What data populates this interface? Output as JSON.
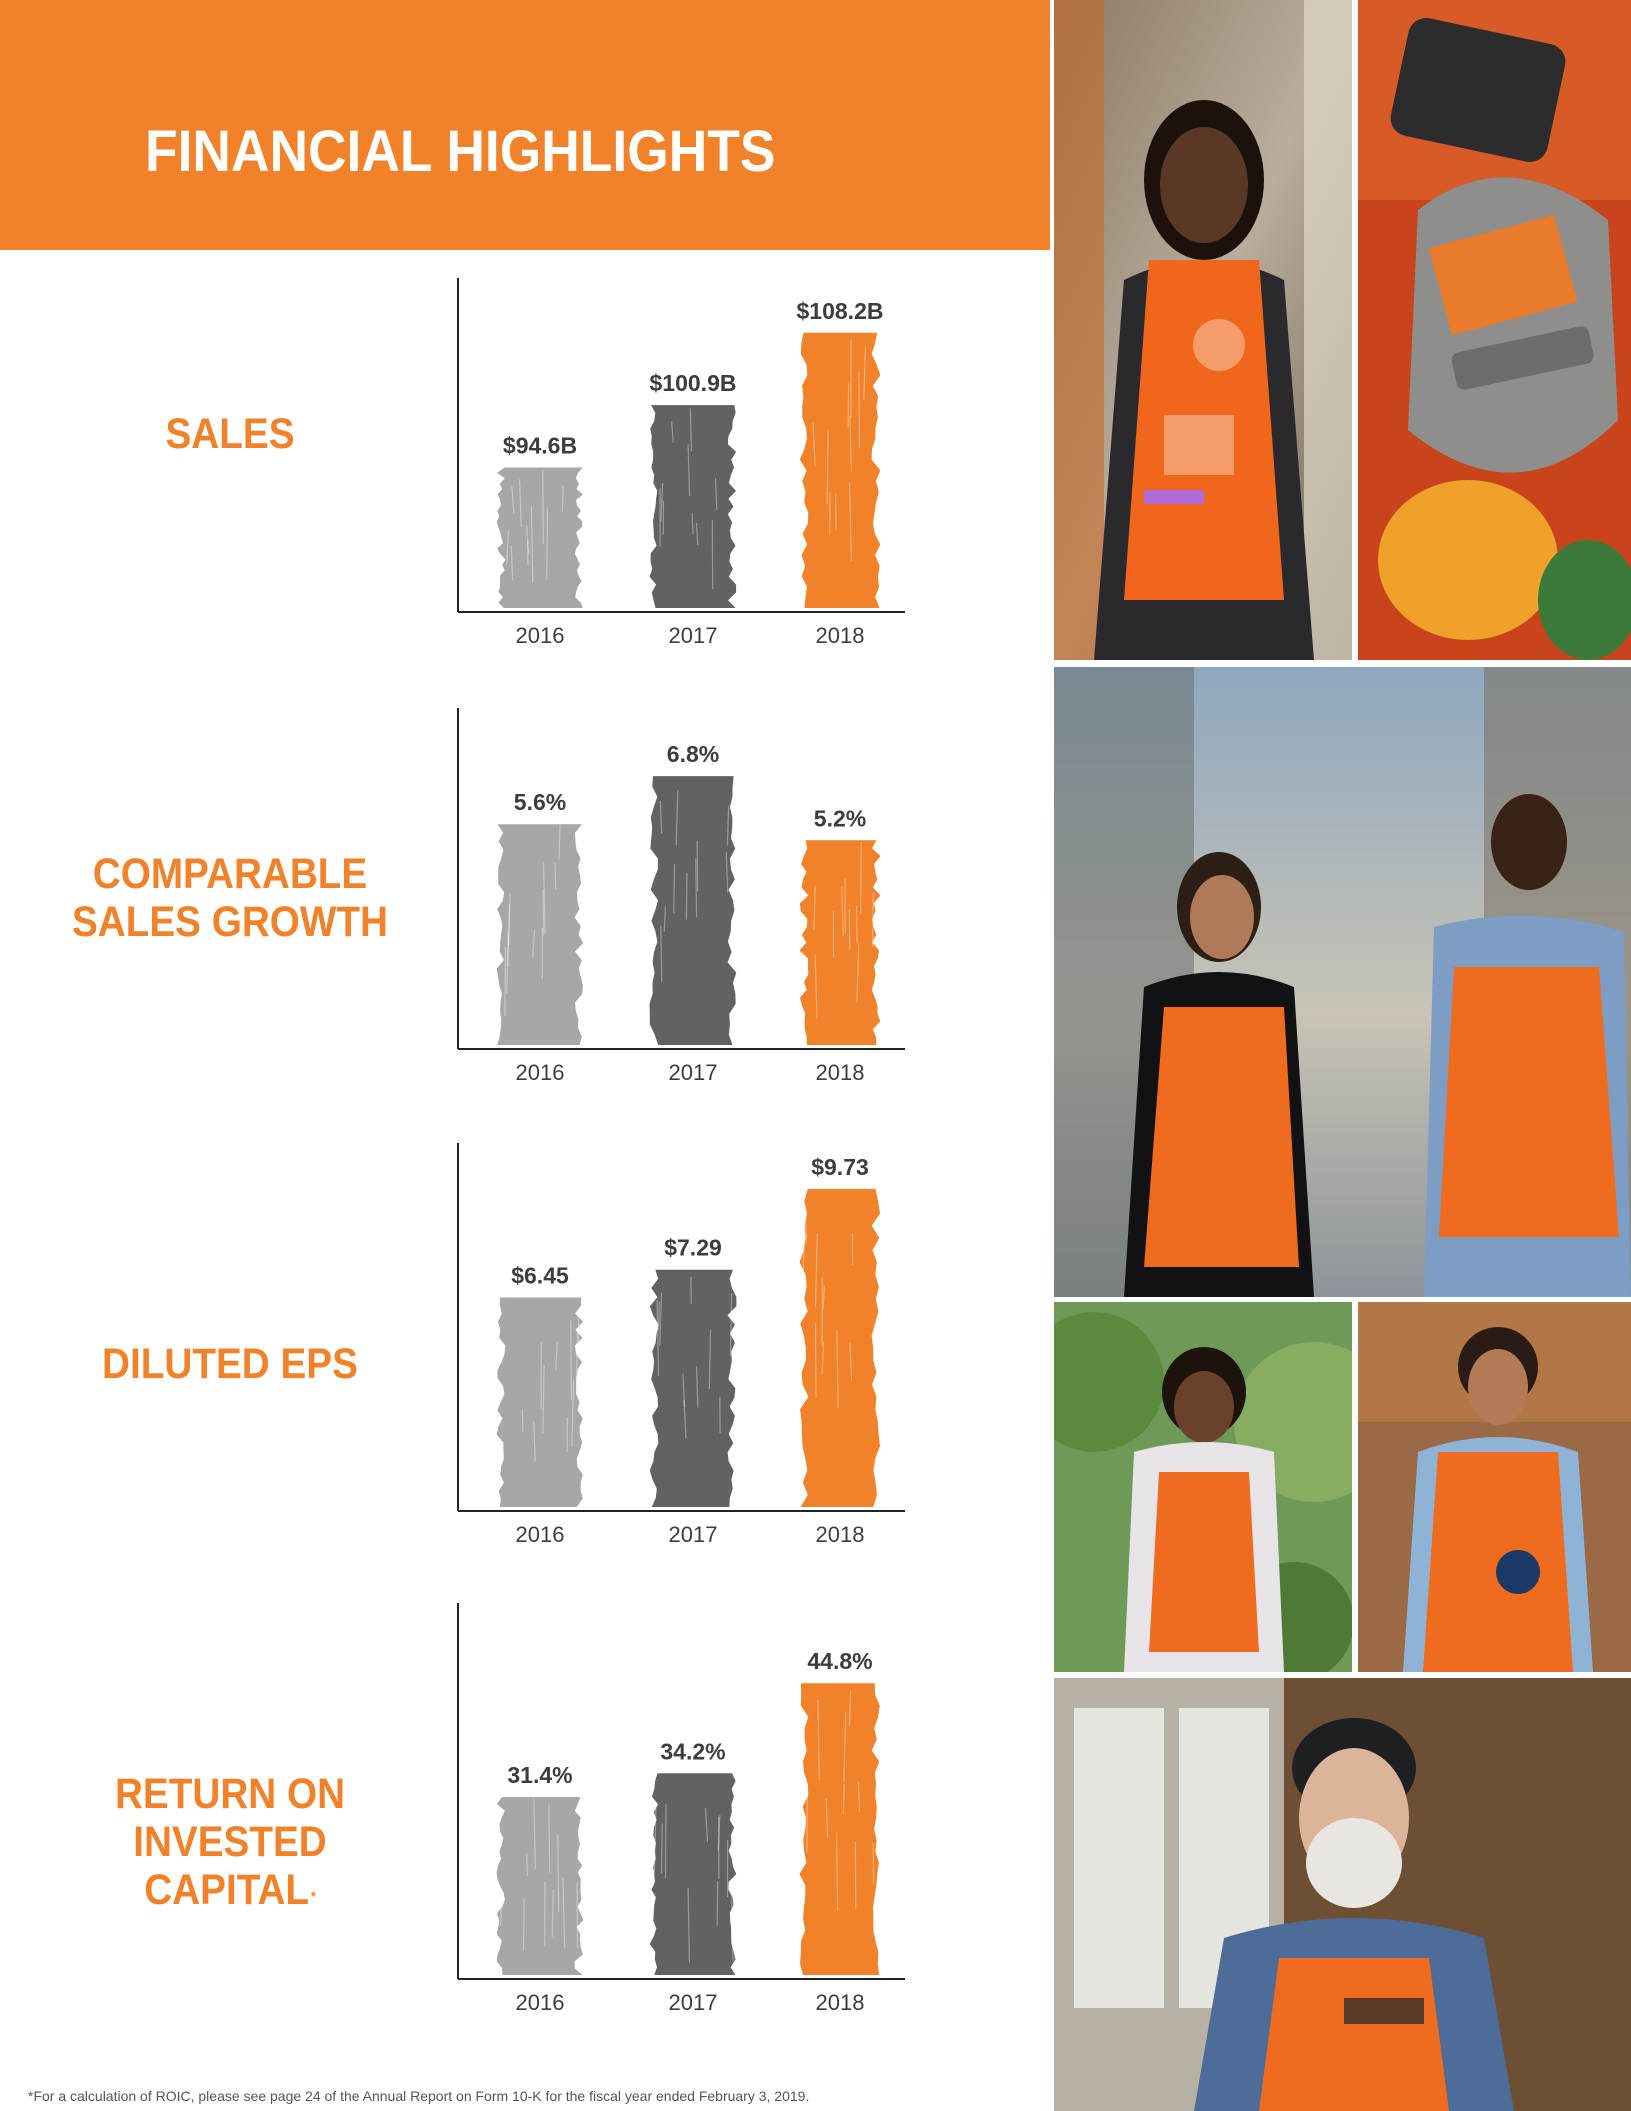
{
  "title": "FINANCIAL HIGHLIGHTS",
  "footnote": "*For a calculation of ROIC, please see page 24 of the Annual Report on Form 10-K for the fiscal year ended February 3, 2019.",
  "colors": {
    "brand_orange": "#f1822a",
    "bar_2016": "#a7a7aa",
    "bar_2017": "#626264",
    "bar_2018": "#f1822a",
    "axis": "#222222",
    "value_text": "#3d3d3d"
  },
  "metrics": {
    "sales": {
      "label_lines": [
        "SALES"
      ]
    },
    "comp": {
      "label_lines": [
        "COMPARABLE",
        "SALES GROWTH"
      ]
    },
    "eps": {
      "label_lines": [
        "DILUTED EPS"
      ]
    },
    "roic": {
      "label_lines": [
        "RETURN ON",
        "INVESTED CAPITAL"
      ],
      "footnote_mark": "*"
    }
  },
  "photos": [
    {
      "name": "associate-smiling-orange-apron-photo"
    },
    {
      "name": "apron-pins-platinum-badge-photo"
    },
    {
      "name": "two-associates-walking-aisle-photo"
    },
    {
      "name": "associate-garden-center-photo"
    },
    {
      "name": "associate-pro-desk-photo"
    },
    {
      "name": "associate-coach-cap-photo"
    }
  ],
  "chart_data": [
    {
      "id": "sales",
      "type": "bar",
      "title": "SALES",
      "categories": [
        "2016",
        "2017",
        "2018"
      ],
      "values": [
        94.6,
        100.9,
        108.2
      ],
      "value_labels": [
        "$94.6B",
        "$100.9B",
        "$108.2B"
      ],
      "unit": "$B",
      "ylim": [
        80,
        110
      ],
      "grid": false
    },
    {
      "id": "comp",
      "type": "bar",
      "title": "COMPARABLE SALES GROWTH",
      "categories": [
        "2016",
        "2017",
        "2018"
      ],
      "values": [
        5.6,
        6.8,
        5.2
      ],
      "value_labels": [
        "5.6%",
        "6.8%",
        "5.2%"
      ],
      "unit": "%",
      "ylim": [
        0,
        7.2
      ],
      "grid": false
    },
    {
      "id": "eps",
      "type": "bar",
      "title": "DILUTED EPS",
      "categories": [
        "2016",
        "2017",
        "2018"
      ],
      "values": [
        6.45,
        7.29,
        9.73
      ],
      "value_labels": [
        "$6.45",
        "$7.29",
        "$9.73"
      ],
      "unit": "$",
      "ylim": [
        0,
        10
      ],
      "grid": false
    },
    {
      "id": "roic",
      "type": "bar",
      "title": "RETURN ON INVESTED CAPITAL*",
      "categories": [
        "2016",
        "2017",
        "2018"
      ],
      "values": [
        31.4,
        34.2,
        44.8
      ],
      "value_labels": [
        "31.4%",
        "34.2%",
        "44.8%"
      ],
      "unit": "%",
      "ylim": [
        10,
        46
      ],
      "grid": false
    }
  ]
}
